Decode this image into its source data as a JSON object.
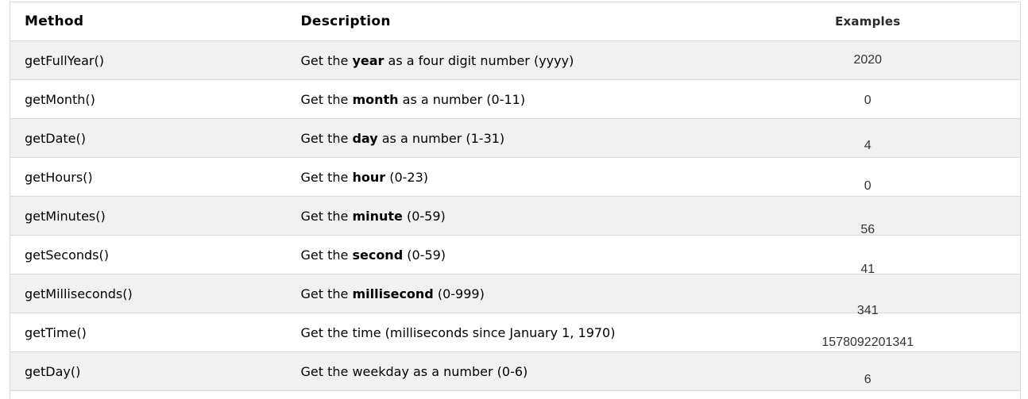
{
  "table": {
    "headers": {
      "method": "Method",
      "description": "Description",
      "examples": "Examples"
    },
    "rows": [
      {
        "method": "getFullYear()",
        "desc_prefix": "Get the ",
        "desc_bold": "year",
        "desc_suffix": " as a four digit number (yyyy)",
        "example": "2020"
      },
      {
        "method": "getMonth()",
        "desc_prefix": "Get the ",
        "desc_bold": "month",
        "desc_suffix": " as a number (0-11)",
        "example": "0"
      },
      {
        "method": "getDate()",
        "desc_prefix": "Get the ",
        "desc_bold": "day",
        "desc_suffix": " as a number (1-31)",
        "example": "4"
      },
      {
        "method": "getHours()",
        "desc_prefix": "Get the ",
        "desc_bold": "hour",
        "desc_suffix": " (0-23)",
        "example": "0"
      },
      {
        "method": "getMinutes()",
        "desc_prefix": "Get the ",
        "desc_bold": "minute",
        "desc_suffix": " (0-59)",
        "example": "56"
      },
      {
        "method": "getSeconds()",
        "desc_prefix": "Get the ",
        "desc_bold": "second",
        "desc_suffix": " (0-59)",
        "example": "41"
      },
      {
        "method": "getMilliseconds()",
        "desc_prefix": "Get the ",
        "desc_bold": "millisecond",
        "desc_suffix": " (0-999)",
        "example": "341"
      },
      {
        "method": "getTime()",
        "desc_prefix": "Get the time (milliseconds since January 1, 1970)",
        "desc_bold": "",
        "desc_suffix": "",
        "example": "1578092201341"
      },
      {
        "method": "getDay()",
        "desc_prefix": "Get the weekday as a number (0-6)",
        "desc_bold": "",
        "desc_suffix": "",
        "example": "6"
      }
    ],
    "colors": {
      "zebra_row": "#f1f1f1",
      "border": "#d9d9d9",
      "text": "#000000",
      "example_text": "#333333"
    }
  }
}
